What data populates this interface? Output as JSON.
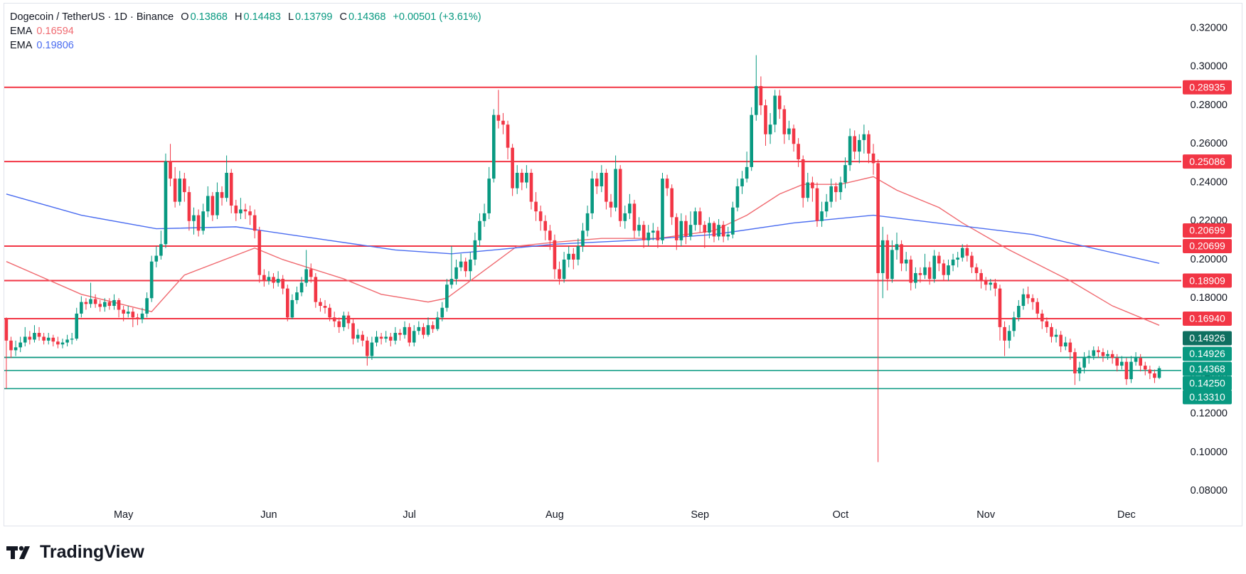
{
  "chart_data": {
    "type": "candlestick",
    "title": "Dogecoin / TetherUS · 1D · Binance",
    "ohlc_labels": [
      "O",
      "H",
      "L",
      "C"
    ],
    "change": "+0.00501 (+3.61%)",
    "brand": "TradingView",
    "up_color": "#089981",
    "down_color": "#f23645",
    "categories": [
      null,
      null,
      null,
      null,
      null,
      null,
      null,
      null,
      null,
      null,
      null,
      null,
      null,
      null,
      null,
      null,
      null,
      null,
      null,
      null,
      null,
      null,
      null,
      null,
      null,
      "May",
      null,
      null,
      null,
      null,
      null,
      null,
      null,
      null,
      null,
      null,
      null,
      null,
      null,
      null,
      null,
      null,
      null,
      null,
      null,
      null,
      null,
      null,
      null,
      null,
      null,
      null,
      null,
      null,
      null,
      null,
      "Jun",
      null,
      null,
      null,
      null,
      null,
      null,
      null,
      null,
      null,
      null,
      null,
      null,
      null,
      null,
      null,
      null,
      null,
      null,
      null,
      null,
      null,
      null,
      null,
      null,
      null,
      null,
      null,
      null,
      null,
      "Jul",
      null,
      null,
      null,
      null,
      null,
      null,
      null,
      null,
      null,
      null,
      null,
      null,
      null,
      null,
      null,
      null,
      null,
      null,
      null,
      null,
      null,
      null,
      null,
      null,
      null,
      null,
      null,
      null,
      null,
      null,
      "Aug",
      null,
      null,
      null,
      null,
      null,
      null,
      null,
      null,
      null,
      null,
      null,
      null,
      null,
      null,
      null,
      null,
      null,
      null,
      null,
      null,
      null,
      null,
      null,
      null,
      null,
      null,
      null,
      null,
      null,
      null,
      "Sep",
      null,
      null,
      null,
      null,
      null,
      null,
      null,
      null,
      null,
      null,
      null,
      null,
      null,
      null,
      null,
      null,
      null,
      null,
      null,
      null,
      null,
      null,
      null,
      null,
      null,
      null,
      null,
      null,
      null,
      "Oct",
      null,
      null,
      null,
      null,
      null,
      null,
      null,
      null,
      null,
      null,
      null,
      null,
      null,
      null,
      null,
      null,
      null,
      null,
      null,
      null,
      null,
      null,
      null,
      null,
      null,
      null,
      null,
      null,
      null,
      null,
      "Nov",
      null,
      null,
      null,
      null,
      null,
      null,
      null,
      null,
      null,
      null,
      null,
      null,
      null,
      null,
      null,
      null,
      null,
      null,
      null,
      null,
      null,
      null,
      null,
      null,
      null,
      null,
      null,
      null,
      null,
      "Dec",
      null,
      null,
      null,
      null,
      null,
      null,
      null
    ],
    "open": [
      0.169,
      0.158,
      0.153,
      0.1545,
      0.157,
      0.16,
      0.1585,
      0.162,
      0.16,
      0.158,
      0.1595,
      0.1575,
      0.156,
      0.157,
      0.1585,
      0.159,
      0.172,
      0.178,
      0.177,
      0.1795,
      0.177,
      0.1755,
      0.178,
      0.176,
      0.179,
      0.174,
      0.172,
      0.173,
      0.17,
      0.169,
      0.172,
      0.18,
      0.199,
      0.202,
      0.208,
      0.251,
      0.242,
      0.23,
      0.242,
      0.235,
      0.22,
      0.223,
      0.215,
      0.225,
      0.233,
      0.223,
      0.235,
      0.232,
      0.245,
      0.228,
      0.224,
      0.226,
      0.225,
      0.223,
      0.215,
      0.192,
      0.189,
      0.191,
      0.188,
      0.19,
      0.185,
      0.17,
      0.179,
      0.183,
      0.188,
      0.195,
      0.191,
      0.178,
      0.176,
      0.175,
      0.17,
      0.168,
      0.165,
      0.171,
      0.167,
      0.159,
      0.161,
      0.158,
      0.15,
      0.157,
      0.16,
      0.159,
      0.16,
      0.158,
      0.162,
      0.161,
      0.165,
      0.157,
      0.163,
      0.165,
      0.161,
      0.166,
      0.164,
      0.17,
      0.175,
      0.187,
      0.19,
      0.196,
      0.199,
      0.194,
      0.2,
      0.21,
      0.22,
      0.224,
      0.242,
      0.275,
      0.272,
      0.27,
      0.258,
      0.237,
      0.245,
      0.24,
      0.245,
      0.23,
      0.225,
      0.22,
      0.215,
      0.21,
      0.195,
      0.19,
      0.2,
      0.203,
      0.2,
      0.207,
      0.215,
      0.224,
      0.242,
      0.238,
      0.245,
      0.23,
      0.227,
      0.247,
      0.22,
      0.224,
      0.229,
      0.215,
      0.218,
      0.21,
      0.214,
      0.215,
      0.21,
      0.242,
      0.237,
      0.222,
      0.21,
      0.22,
      0.212,
      0.218,
      0.225,
      0.218,
      0.214,
      0.219,
      0.212,
      0.218,
      0.212,
      0.213,
      0.227,
      0.238,
      0.242,
      0.248,
      0.275,
      0.29,
      0.28,
      0.265,
      0.27,
      0.285,
      0.278,
      0.265,
      0.268,
      0.26,
      0.252,
      0.232,
      0.24,
      0.237,
      0.22,
      0.225,
      0.23,
      0.238,
      0.235,
      0.24,
      0.249,
      0.264,
      0.256,
      0.262,
      0.265,
      0.255,
      0.25,
      0.193,
      0.21,
      0.19,
      0.205,
      0.208,
      0.198,
      0.2,
      0.188,
      0.193,
      0.192,
      0.196,
      0.19,
      0.202,
      0.198,
      0.192,
      0.197,
      0.2,
      0.201,
      0.206,
      0.202,
      0.196,
      0.193,
      0.189,
      0.187,
      0.188,
      0.185,
      0.165,
      0.158,
      0.163,
      0.17,
      0.176,
      0.182,
      0.18,
      0.178,
      0.172,
      0.168,
      0.165,
      0.16,
      0.161,
      0.155,
      0.157,
      0.152,
      0.141,
      0.144,
      0.149,
      0.15,
      0.153,
      0.152,
      0.15,
      0.151,
      0.149,
      0.145,
      0.147,
      0.138,
      0.147,
      0.149,
      0.145,
      0.143,
      0.141,
      0.13868
    ],
    "high": [
      0.17,
      0.16,
      0.158,
      0.16,
      0.165,
      0.163,
      0.166,
      0.165,
      0.162,
      0.162,
      0.161,
      0.16,
      0.159,
      0.161,
      0.162,
      0.175,
      0.181,
      0.18,
      0.188,
      0.182,
      0.179,
      0.18,
      0.18,
      0.182,
      0.18,
      0.176,
      0.176,
      0.175,
      0.172,
      0.175,
      0.183,
      0.202,
      0.207,
      0.215,
      0.255,
      0.26,
      0.248,
      0.246,
      0.245,
      0.238,
      0.227,
      0.226,
      0.229,
      0.238,
      0.235,
      0.24,
      0.238,
      0.254,
      0.247,
      0.231,
      0.232,
      0.229,
      0.228,
      0.226,
      0.217,
      0.195,
      0.194,
      0.193,
      0.194,
      0.192,
      0.187,
      0.182,
      0.186,
      0.191,
      0.205,
      0.198,
      0.193,
      0.18,
      0.179,
      0.177,
      0.173,
      0.17,
      0.173,
      0.173,
      0.169,
      0.164,
      0.163,
      0.16,
      0.16,
      0.163,
      0.162,
      0.163,
      0.162,
      0.165,
      0.164,
      0.168,
      0.167,
      0.166,
      0.168,
      0.167,
      0.17,
      0.168,
      0.173,
      0.178,
      0.19,
      0.207,
      0.2,
      0.203,
      0.201,
      0.204,
      0.214,
      0.224,
      0.229,
      0.248,
      0.278,
      0.288,
      0.276,
      0.272,
      0.26,
      0.249,
      0.247,
      0.249,
      0.247,
      0.235,
      0.228,
      0.223,
      0.218,
      0.213,
      0.199,
      0.204,
      0.207,
      0.206,
      0.211,
      0.219,
      0.228,
      0.246,
      0.245,
      0.249,
      0.247,
      0.234,
      0.254,
      0.249,
      0.228,
      0.234,
      0.231,
      0.222,
      0.22,
      0.218,
      0.219,
      0.217,
      0.245,
      0.244,
      0.239,
      0.224,
      0.224,
      0.223,
      0.225,
      0.227,
      0.227,
      0.22,
      0.222,
      0.22,
      0.221,
      0.22,
      0.217,
      0.23,
      0.242,
      0.246,
      0.256,
      0.279,
      0.306,
      0.295,
      0.283,
      0.276,
      0.288,
      0.288,
      0.28,
      0.272,
      0.27,
      0.263,
      0.254,
      0.245,
      0.243,
      0.24,
      0.23,
      0.234,
      0.242,
      0.24,
      0.243,
      0.253,
      0.268,
      0.267,
      0.265,
      0.27,
      0.267,
      0.26,
      0.252,
      0.217,
      0.213,
      0.21,
      0.214,
      0.21,
      0.204,
      0.202,
      0.196,
      0.196,
      0.203,
      0.199,
      0.205,
      0.204,
      0.2,
      0.2,
      0.203,
      0.204,
      0.208,
      0.208,
      0.204,
      0.198,
      0.195,
      0.191,
      0.19,
      0.19,
      0.187,
      0.168,
      0.166,
      0.173,
      0.179,
      0.185,
      0.186,
      0.182,
      0.18,
      0.174,
      0.17,
      0.167,
      0.164,
      0.163,
      0.16,
      0.159,
      0.154,
      0.147,
      0.152,
      0.153,
      0.155,
      0.155,
      0.154,
      0.153,
      0.153,
      0.151,
      0.15,
      0.149,
      0.15,
      0.152,
      0.151,
      0.147,
      0.145,
      0.143,
      0.14483
    ],
    "low": [
      0.133,
      0.149,
      0.15,
      0.152,
      0.155,
      0.156,
      0.157,
      0.158,
      0.156,
      0.156,
      0.155,
      0.154,
      0.154,
      0.155,
      0.156,
      0.158,
      0.17,
      0.174,
      0.175,
      0.175,
      0.173,
      0.173,
      0.174,
      0.174,
      0.17,
      0.168,
      0.17,
      0.165,
      0.166,
      0.167,
      0.17,
      0.178,
      0.196,
      0.2,
      0.206,
      0.238,
      0.227,
      0.228,
      0.23,
      0.215,
      0.213,
      0.212,
      0.213,
      0.222,
      0.22,
      0.221,
      0.228,
      0.23,
      0.224,
      0.22,
      0.221,
      0.221,
      0.218,
      0.211,
      0.188,
      0.186,
      0.187,
      0.185,
      0.186,
      0.182,
      0.168,
      0.169,
      0.177,
      0.181,
      0.186,
      0.188,
      0.175,
      0.173,
      0.172,
      0.168,
      0.165,
      0.162,
      0.163,
      0.164,
      0.156,
      0.157,
      0.155,
      0.145,
      0.148,
      0.155,
      0.156,
      0.157,
      0.155,
      0.156,
      0.158,
      0.159,
      0.155,
      0.155,
      0.161,
      0.159,
      0.16,
      0.162,
      0.163,
      0.168,
      0.173,
      0.185,
      0.187,
      0.194,
      0.191,
      0.189,
      0.197,
      0.207,
      0.217,
      0.221,
      0.24,
      0.268,
      0.265,
      0.252,
      0.233,
      0.234,
      0.236,
      0.237,
      0.226,
      0.22,
      0.215,
      0.21,
      0.205,
      0.19,
      0.187,
      0.188,
      0.196,
      0.195,
      0.197,
      0.204,
      0.212,
      0.221,
      0.234,
      0.235,
      0.226,
      0.222,
      0.225,
      0.217,
      0.216,
      0.221,
      0.211,
      0.212,
      0.206,
      0.207,
      0.21,
      0.206,
      0.208,
      0.233,
      0.218,
      0.205,
      0.207,
      0.208,
      0.21,
      0.215,
      0.214,
      0.206,
      0.211,
      0.209,
      0.21,
      0.209,
      0.21,
      0.211,
      0.225,
      0.234,
      0.24,
      0.246,
      0.272,
      0.275,
      0.259,
      0.26,
      0.266,
      0.273,
      0.26,
      0.262,
      0.256,
      0.248,
      0.227,
      0.23,
      0.23,
      0.217,
      0.217,
      0.222,
      0.227,
      0.23,
      0.231,
      0.237,
      0.246,
      0.252,
      0.25,
      0.255,
      0.25,
      0.244,
      0.095,
      0.18,
      0.184,
      0.188,
      0.2,
      0.194,
      0.194,
      0.184,
      0.185,
      0.188,
      0.19,
      0.187,
      0.188,
      0.194,
      0.189,
      0.189,
      0.194,
      0.196,
      0.199,
      0.199,
      0.193,
      0.189,
      0.185,
      0.184,
      0.184,
      0.181,
      0.158,
      0.15,
      0.154,
      0.16,
      0.168,
      0.174,
      0.177,
      0.174,
      0.169,
      0.164,
      0.162,
      0.157,
      0.157,
      0.152,
      0.153,
      0.148,
      0.135,
      0.137,
      0.141,
      0.146,
      0.148,
      0.149,
      0.147,
      0.148,
      0.146,
      0.142,
      0.143,
      0.135,
      0.136,
      0.145,
      0.142,
      0.14,
      0.138,
      0.136,
      0.13799
    ],
    "close": [
      0.158,
      0.153,
      0.1545,
      0.157,
      0.16,
      0.1585,
      0.162,
      0.16,
      0.158,
      0.1595,
      0.1575,
      0.156,
      0.157,
      0.1585,
      0.159,
      0.172,
      0.178,
      0.177,
      0.1795,
      0.177,
      0.1755,
      0.178,
      0.176,
      0.179,
      0.174,
      0.172,
      0.173,
      0.17,
      0.169,
      0.172,
      0.18,
      0.199,
      0.202,
      0.208,
      0.251,
      0.242,
      0.23,
      0.242,
      0.235,
      0.22,
      0.223,
      0.215,
      0.225,
      0.233,
      0.223,
      0.235,
      0.232,
      0.245,
      0.228,
      0.224,
      0.226,
      0.225,
      0.223,
      0.215,
      0.192,
      0.189,
      0.191,
      0.188,
      0.19,
      0.185,
      0.17,
      0.179,
      0.183,
      0.188,
      0.195,
      0.191,
      0.178,
      0.176,
      0.175,
      0.17,
      0.168,
      0.165,
      0.171,
      0.167,
      0.159,
      0.161,
      0.158,
      0.15,
      0.157,
      0.16,
      0.159,
      0.16,
      0.158,
      0.162,
      0.161,
      0.165,
      0.157,
      0.163,
      0.165,
      0.161,
      0.166,
      0.164,
      0.17,
      0.175,
      0.187,
      0.19,
      0.196,
      0.199,
      0.194,
      0.2,
      0.21,
      0.22,
      0.224,
      0.242,
      0.275,
      0.272,
      0.27,
      0.258,
      0.237,
      0.245,
      0.24,
      0.245,
      0.23,
      0.225,
      0.22,
      0.215,
      0.21,
      0.195,
      0.19,
      0.2,
      0.203,
      0.2,
      0.207,
      0.215,
      0.224,
      0.242,
      0.238,
      0.245,
      0.23,
      0.227,
      0.247,
      0.22,
      0.224,
      0.229,
      0.215,
      0.218,
      0.21,
      0.214,
      0.215,
      0.21,
      0.242,
      0.237,
      0.222,
      0.21,
      0.22,
      0.212,
      0.218,
      0.225,
      0.218,
      0.214,
      0.219,
      0.212,
      0.218,
      0.212,
      0.213,
      0.227,
      0.238,
      0.242,
      0.248,
      0.275,
      0.29,
      0.28,
      0.265,
      0.27,
      0.285,
      0.278,
      0.265,
      0.268,
      0.26,
      0.252,
      0.232,
      0.24,
      0.237,
      0.22,
      0.225,
      0.23,
      0.238,
      0.235,
      0.24,
      0.249,
      0.264,
      0.256,
      0.262,
      0.265,
      0.255,
      0.25,
      0.193,
      0.21,
      0.19,
      0.205,
      0.208,
      0.198,
      0.2,
      0.188,
      0.193,
      0.192,
      0.196,
      0.19,
      0.202,
      0.198,
      0.192,
      0.197,
      0.2,
      0.201,
      0.206,
      0.202,
      0.196,
      0.193,
      0.189,
      0.187,
      0.188,
      0.185,
      0.165,
      0.158,
      0.163,
      0.17,
      0.176,
      0.182,
      0.18,
      0.178,
      0.172,
      0.168,
      0.165,
      0.16,
      0.161,
      0.155,
      0.157,
      0.152,
      0.141,
      0.144,
      0.149,
      0.15,
      0.153,
      0.152,
      0.15,
      0.151,
      0.149,
      0.145,
      0.147,
      0.138,
      0.147,
      0.149,
      0.145,
      0.143,
      0.141,
      0.13868,
      0.14368
    ],
    "overlays": [
      {
        "name": "EMA",
        "color": "#f06a70",
        "x": [
          0,
          16,
          31,
          38,
          53,
          59,
          72,
          80,
          90,
          94,
          104,
          109,
          117,
          127,
          139,
          151,
          158,
          165,
          170,
          178,
          185,
          190,
          199,
          204,
          214,
          227,
          236,
          246
        ],
        "values": [
          0.199,
          0.182,
          0.173,
          0.192,
          0.206,
          0.2,
          0.19,
          0.182,
          0.178,
          0.18,
          0.198,
          0.207,
          0.209,
          0.211,
          0.211,
          0.215,
          0.223,
          0.234,
          0.239,
          0.239,
          0.243,
          0.236,
          0.227,
          0.219,
          0.205,
          0.189,
          0.176,
          0.16594
        ]
      },
      {
        "name": "EMA",
        "color": "#4a6cf0",
        "x": [
          0,
          16,
          32,
          49,
          66,
          83,
          95,
          104,
          117,
          134,
          151,
          168,
          185,
          202,
          219,
          246
        ],
        "values": [
          0.234,
          0.223,
          0.216,
          0.217,
          0.211,
          0.205,
          0.203,
          0.205,
          0.208,
          0.21,
          0.213,
          0.219,
          0.223,
          0.218,
          0.213,
          0.19806
        ]
      }
    ],
    "levels": [
      {
        "value": 0.28935,
        "label": "0.28935",
        "color": "#f23645"
      },
      {
        "value": 0.25086,
        "label": "0.25086",
        "color": "#f23645"
      },
      {
        "value": 0.20699,
        "label": "0.20699",
        "color": "#f23645"
      },
      {
        "value": 0.20699,
        "label": "0.20699",
        "color": "#f23645"
      },
      {
        "value": 0.18909,
        "label": "0.18909",
        "color": "#f23645"
      },
      {
        "value": 0.1694,
        "label": "0.16940",
        "color": "#f23645"
      },
      {
        "value": 0.14926,
        "label": "0.14926",
        "color": "#0f6f60"
      },
      {
        "value": 0.14926,
        "label": "0.14926",
        "color": "#089981"
      },
      {
        "value": 0.1425,
        "label": "0.14250",
        "color": "#089981"
      },
      {
        "value": 0.1331,
        "label": "0.13310",
        "color": "#089981"
      }
    ],
    "ylim": [
      0.0709,
      0.3324
    ],
    "yticks": [
      {
        "value": 0.08,
        "label": "0.08000"
      },
      {
        "value": 0.1,
        "label": "0.10000"
      },
      {
        "value": 0.12,
        "label": "0.12000"
      },
      {
        "value": 0.14,
        "label": "0.14000"
      },
      {
        "value": 0.16,
        "label": "0.16000"
      },
      {
        "value": 0.18,
        "label": "0.18000"
      },
      {
        "value": 0.2,
        "label": "0.20000"
      },
      {
        "value": 0.22,
        "label": "0.22000"
      },
      {
        "value": 0.24,
        "label": "0.24000"
      },
      {
        "value": 0.26,
        "label": "0.26000"
      },
      {
        "value": 0.28,
        "label": "0.28000"
      },
      {
        "value": 0.3,
        "label": "0.30000"
      },
      {
        "value": 0.32,
        "label": "0.32000"
      }
    ]
  }
}
